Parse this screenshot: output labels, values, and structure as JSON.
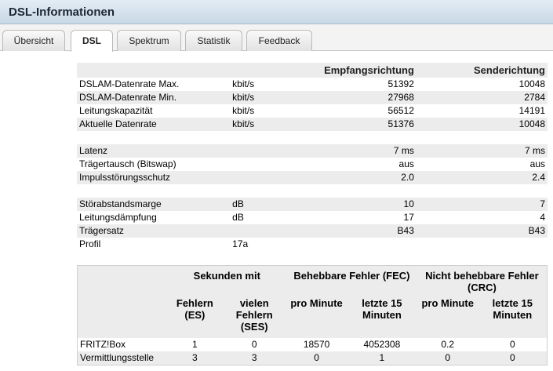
{
  "title": "DSL-Informationen",
  "tabs": [
    "Übersicht",
    "DSL",
    "Spektrum",
    "Statistik",
    "Feedback"
  ],
  "active_tab": "DSL",
  "info": {
    "head_empfang": "Empfangsrichtung",
    "head_sende": "Senderichtung",
    "rows": [
      {
        "label": "DSLAM-Datenrate Max.",
        "unit": "kbit/s",
        "rx": "51392",
        "tx": "10048"
      },
      {
        "label": "DSLAM-Datenrate Min.",
        "unit": "kbit/s",
        "rx": "27968",
        "tx": "2784"
      },
      {
        "label": "Leitungskapazität",
        "unit": "kbit/s",
        "rx": "56512",
        "tx": "14191"
      },
      {
        "label": "Aktuelle Datenrate",
        "unit": "kbit/s",
        "rx": "51376",
        "tx": "10048"
      },
      {
        "label": "",
        "unit": "",
        "rx": "",
        "tx": ""
      },
      {
        "label": "Latenz",
        "unit": "",
        "rx": "7 ms",
        "tx": "7 ms"
      },
      {
        "label": "Trägertausch (Bitswap)",
        "unit": "",
        "rx": "aus",
        "tx": "aus"
      },
      {
        "label": "Impulsstörungsschutz",
        "unit": "",
        "rx": "2.0",
        "tx": "2.4"
      },
      {
        "label": "",
        "unit": "",
        "rx": "",
        "tx": ""
      },
      {
        "label": "Störabstandsmarge",
        "unit": "dB",
        "rx": "10",
        "tx": "7"
      },
      {
        "label": "Leitungsdämpfung",
        "unit": "dB",
        "rx": "17",
        "tx": "4"
      },
      {
        "label": "Trägersatz",
        "unit": "",
        "rx": "B43",
        "tx": "B43"
      },
      {
        "label": "Profil",
        "unit": "17a",
        "rx": "",
        "tx": ""
      }
    ]
  },
  "errors": {
    "group_seconds": "Sekunden mit",
    "group_fec": "Behebbare Fehler (FEC)",
    "group_crc": "Nicht behebbare Fehler (CRC)",
    "col_es": "Fehlern (ES)",
    "col_ses": "vielen Fehlern (SES)",
    "col_fec_min": "pro Minute",
    "col_fec_15": "letzte 15 Minuten",
    "col_crc_min": "pro Minute",
    "col_crc_15": "letzte 15 Minuten",
    "rows": [
      {
        "label": "FRITZ!Box",
        "es": "1",
        "ses": "0",
        "fec_min": "18570",
        "fec_15": "4052308",
        "crc_min": "0.2",
        "crc_15": "0"
      },
      {
        "label": "Vermittlungsstelle",
        "es": "3",
        "ses": "3",
        "fec_min": "0",
        "fec_15": "1",
        "crc_min": "0",
        "crc_15": "0"
      }
    ]
  }
}
